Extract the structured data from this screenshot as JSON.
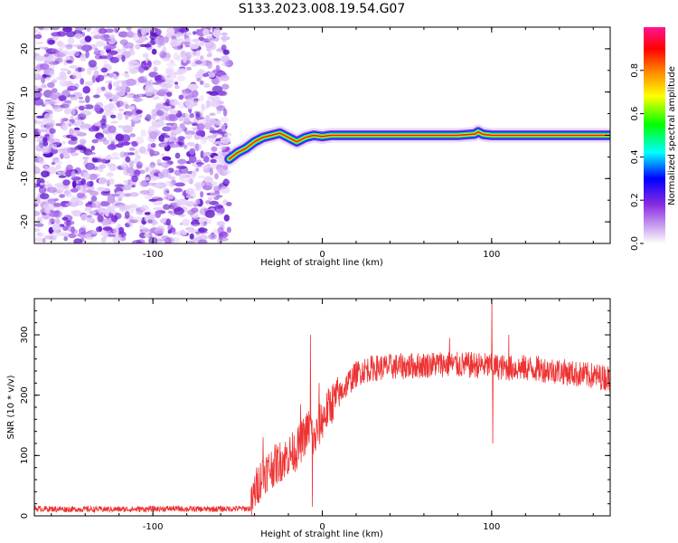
{
  "figure": {
    "title": "S133.2023.008.19.54.G07"
  },
  "chart_data": [
    {
      "type": "heatmap",
      "title": "S133.2023.008.19.54.G07",
      "xlabel": "Height of straight line (km)",
      "ylabel": "Frequency (Hz)",
      "xlim": [
        -170,
        170
      ],
      "ylim": [
        -25,
        25
      ],
      "xticks": [
        -100,
        0,
        100
      ],
      "xtick_labels": [
        "-100",
        "0",
        "100"
      ],
      "yticks": [
        -20,
        -10,
        0,
        10,
        20
      ],
      "ytick_labels": [
        "-20",
        "-10",
        "0",
        "10",
        "20"
      ],
      "noise_region_x": [
        -170,
        -55
      ],
      "signal_track": {
        "x": [
          -55,
          -50,
          -45,
          -40,
          -35,
          -30,
          -25,
          -20,
          -15,
          -10,
          -5,
          0,
          5,
          20,
          40,
          60,
          80,
          90,
          92,
          95,
          100,
          120,
          140,
          160,
          170
        ],
        "y": [
          -5.5,
          -4.0,
          -3.0,
          -1.5,
          -0.5,
          0.0,
          0.5,
          -0.5,
          -1.5,
          -0.5,
          0.0,
          -0.3,
          0.0,
          0.0,
          0.0,
          0.0,
          0.0,
          0.3,
          0.8,
          0.2,
          0.0,
          0.0,
          0.0,
          0.0,
          0.0
        ]
      },
      "colorbar": {
        "label": "Normalized spectral amplitude",
        "range": [
          0,
          1
        ],
        "ticks": [
          0.0,
          0.2,
          0.4,
          0.6,
          0.8
        ],
        "tick_labels": [
          "0.0",
          "0.2",
          "0.4",
          "0.6",
          "0.8"
        ],
        "colormap": [
          "#ffffff",
          "#8a2be2",
          "#0000ff",
          "#00ffff",
          "#00ff00",
          "#ffff00",
          "#ff8000",
          "#ff0000",
          "#ff1493"
        ]
      }
    },
    {
      "type": "line",
      "xlabel": "Height of straight line (km)",
      "ylabel": "SNR (10 * v/v)",
      "xlim": [
        -170,
        170
      ],
      "ylim": [
        0,
        360
      ],
      "xticks": [
        -100,
        0,
        100
      ],
      "xtick_labels": [
        "-100",
        "0",
        "100"
      ],
      "yticks": [
        0,
        100,
        200,
        300
      ],
      "ytick_labels": [
        "0",
        "100",
        "200",
        "300"
      ],
      "color": "#ee3333",
      "series": [
        {
          "x": [
            -170,
            -150,
            -130,
            -110,
            -90,
            -70,
            -50,
            -42,
            -40,
            -35,
            -30,
            -25,
            -20,
            -15,
            -10,
            -7,
            -5,
            -3,
            0,
            5,
            10,
            15,
            20,
            25,
            30,
            40,
            50,
            60,
            70,
            80,
            90,
            100,
            110,
            120,
            130,
            140,
            150,
            160,
            170
          ],
          "values": [
            12,
            11,
            11,
            11,
            12,
            11,
            12,
            12,
            40,
            70,
            80,
            90,
            100,
            110,
            135,
            150,
            120,
            140,
            160,
            185,
            200,
            220,
            235,
            242,
            245,
            247,
            248,
            250,
            252,
            250,
            250,
            248,
            245,
            245,
            243,
            240,
            235,
            232,
            228
          ],
          "spikes": [
            {
              "x": -35,
              "value": 130
            },
            {
              "x": -13,
              "value": 185
            },
            {
              "x": -7,
              "value": 300
            },
            {
              "x": -6,
              "value": 15
            },
            {
              "x": -2,
              "value": 220
            },
            {
              "x": 75,
              "value": 295
            },
            {
              "x": 100,
              "value": 360
            },
            {
              "x": 100.5,
              "value": 120
            },
            {
              "x": 110,
              "value": 300
            }
          ]
        }
      ]
    }
  ]
}
